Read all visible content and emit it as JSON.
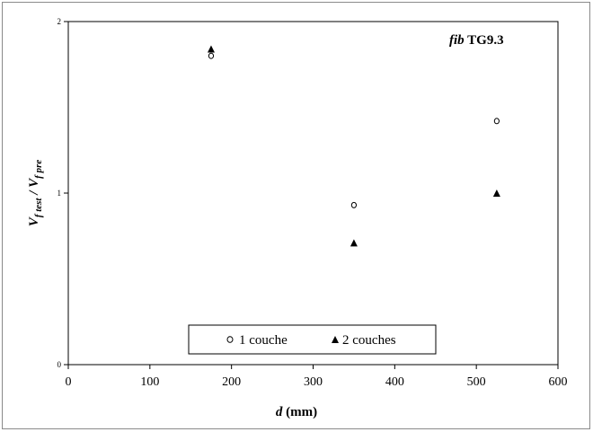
{
  "chart_data": {
    "type": "scatter",
    "xlabel": {
      "var": "d",
      "unit": " (mm)"
    },
    "ylabel": {
      "main1": "V",
      "sub1": "f test",
      "sep": " / ",
      "main2": "V",
      "sub2": "f pre"
    },
    "annotation": {
      "italic": "fib",
      "rest": " TG9.3"
    },
    "xlim": [
      0,
      600
    ],
    "ylim": [
      0,
      2
    ],
    "xticks": [
      0,
      100,
      200,
      300,
      400,
      500,
      600
    ],
    "yticks": [
      0,
      1,
      2
    ],
    "legend_position": "bottom-center",
    "series": [
      {
        "name": "1 couche",
        "marker": "open-circle",
        "x": [
          175,
          350,
          525
        ],
        "y": [
          1.8,
          0.93,
          1.42
        ]
      },
      {
        "name": "2 couches",
        "marker": "filled-triangle",
        "x": [
          175,
          350,
          525
        ],
        "y": [
          1.84,
          0.71,
          1.0
        ]
      }
    ]
  }
}
